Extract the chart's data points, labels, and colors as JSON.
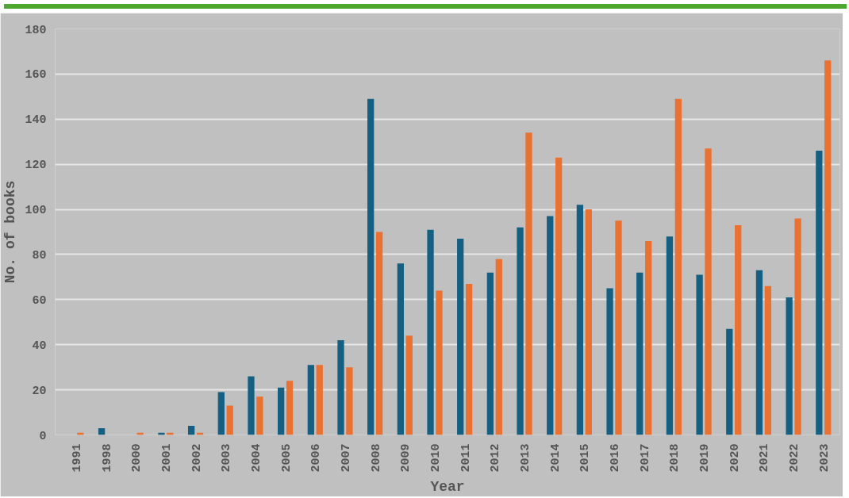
{
  "chart_data": {
    "type": "bar",
    "xlabel": "Year",
    "ylabel": "No. of books",
    "categories": [
      "1991",
      "1998",
      "2000",
      "2001",
      "2002",
      "2003",
      "2004",
      "2005",
      "2006",
      "2007",
      "2008",
      "2009",
      "2010",
      "2011",
      "2012",
      "2013",
      "2014",
      "2015",
      "2016",
      "2017",
      "2018",
      "2019",
      "2020",
      "2021",
      "2022",
      "2023"
    ],
    "series": [
      {
        "color": "#155f82",
        "values": [
          0,
          3,
          0,
          1,
          4,
          19,
          26,
          21,
          31,
          42,
          149,
          76,
          91,
          87,
          72,
          92,
          97,
          102,
          65,
          72,
          88,
          71,
          47,
          73,
          61,
          126
        ]
      },
      {
        "color": "#e97132",
        "values": [
          1,
          0,
          1,
          1,
          1,
          13,
          17,
          24,
          31,
          30,
          90,
          44,
          64,
          67,
          78,
          134,
          123,
          100,
          95,
          86,
          149,
          127,
          93,
          66,
          96,
          166
        ]
      }
    ],
    "ylim": [
      0,
      180
    ],
    "yticks": [
      0,
      20,
      40,
      60,
      80,
      100,
      120,
      140,
      160,
      180
    ],
    "grid": "y"
  }
}
